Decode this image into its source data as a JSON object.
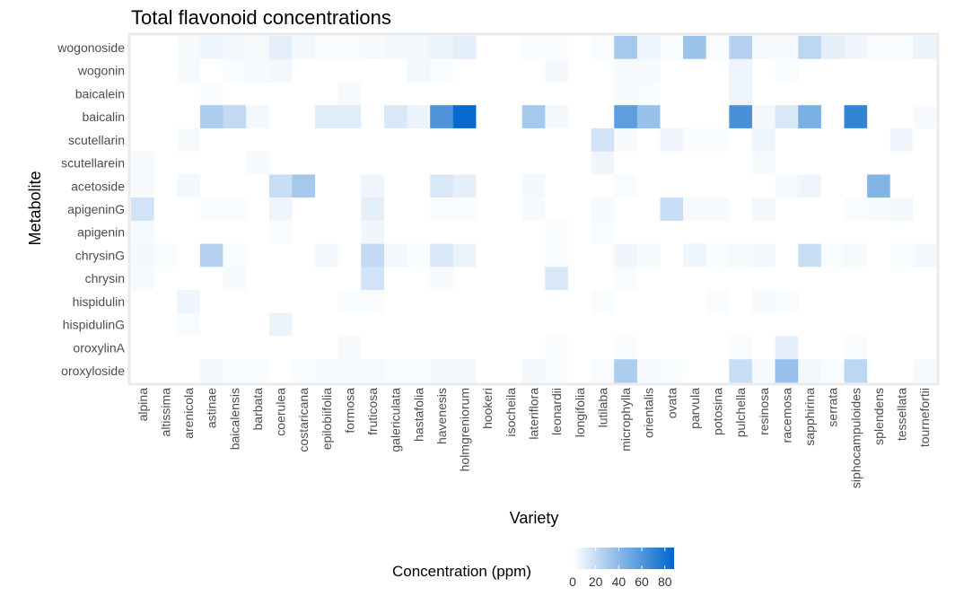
{
  "chart_data": {
    "type": "heatmap",
    "title": "Total flavonoid concentrations",
    "xlabel": "Variety",
    "ylabel": "Metabolite",
    "x": [
      "alpina",
      "altissima",
      "arenicola",
      "astinae",
      "baicalensis",
      "barbata",
      "coerulea",
      "costaricana",
      "epilobiifolia",
      "formosa",
      "fruticosa",
      "galericulata",
      "hastafolia",
      "havenesis",
      "holmgreniorum",
      "hookeri",
      "isocheila",
      "lateriflora",
      "leonardii",
      "longifolia",
      "lutilaba",
      "microphylla",
      "orientalis",
      "ovata",
      "parvula",
      "potosina",
      "pulchella",
      "resinosa",
      "racemosa",
      "sapphirina",
      "serrata",
      "siphocampuloides",
      "splendens",
      "tessellata",
      "tournefortii"
    ],
    "y": [
      "wogonoside",
      "wogonin",
      "baicalein",
      "baicalin",
      "scutellarin",
      "scutellarein",
      "acetoside",
      "apigeninG",
      "apigenin",
      "chrysinG",
      "chrysin",
      "hispidulin",
      "hispidulinG",
      "oroxylinA",
      "oroxyloside"
    ],
    "values": [
      [
        0,
        0,
        2,
        5,
        3,
        2,
        8,
        3,
        1,
        1,
        2,
        3,
        3,
        6,
        9,
        0,
        0,
        1,
        1,
        0,
        1,
        30,
        5,
        1,
        33,
        1,
        25,
        2,
        2,
        22,
        8,
        4,
        1,
        1,
        6
      ],
      [
        0,
        0,
        2,
        0,
        1,
        2,
        3,
        0,
        0,
        0,
        0,
        0,
        3,
        1,
        0,
        0,
        0,
        0,
        3,
        0,
        0,
        2,
        2,
        0,
        0,
        0,
        5,
        0,
        1,
        0,
        0,
        0,
        0,
        0,
        0
      ],
      [
        0,
        0,
        0,
        1,
        0,
        0,
        0,
        0,
        0,
        2,
        0,
        0,
        0,
        0,
        0,
        0,
        0,
        0,
        0,
        0,
        0,
        2,
        1,
        0,
        0,
        0,
        5,
        0,
        0,
        0,
        0,
        0,
        0,
        0,
        0
      ],
      [
        0,
        0,
        0,
        28,
        20,
        3,
        0,
        0,
        10,
        10,
        0,
        12,
        6,
        60,
        85,
        0,
        0,
        30,
        3,
        0,
        0,
        55,
        35,
        0,
        0,
        0,
        62,
        3,
        12,
        45,
        0,
        70,
        0,
        0,
        2
      ],
      [
        0,
        0,
        2,
        0,
        0,
        0,
        0,
        0,
        0,
        0,
        0,
        0,
        0,
        0,
        0,
        0,
        0,
        0,
        0,
        0,
        15,
        2,
        0,
        4,
        1,
        1,
        0,
        5,
        0,
        0,
        0,
        0,
        0,
        4,
        0
      ],
      [
        2,
        0,
        0,
        0,
        0,
        2,
        0,
        0,
        0,
        0,
        0,
        0,
        0,
        0,
        0,
        0,
        0,
        0,
        0,
        0,
        4,
        0,
        0,
        0,
        0,
        0,
        0,
        2,
        0,
        0,
        0,
        0,
        0,
        0,
        0
      ],
      [
        2,
        0,
        3,
        0,
        0,
        0,
        18,
        30,
        0,
        0,
        5,
        0,
        0,
        12,
        8,
        0,
        0,
        3,
        0,
        0,
        0,
        1,
        0,
        0,
        0,
        0,
        0,
        0,
        2,
        5,
        0,
        0,
        42,
        0,
        0
      ],
      [
        15,
        0,
        0,
        1,
        1,
        0,
        5,
        0,
        0,
        0,
        8,
        0,
        0,
        1,
        1,
        0,
        0,
        2,
        0,
        0,
        2,
        0,
        0,
        18,
        2,
        2,
        0,
        3,
        0,
        0,
        0,
        1,
        2,
        3,
        0
      ],
      [
        2,
        0,
        0,
        0,
        0,
        0,
        1,
        0,
        0,
        0,
        4,
        0,
        0,
        0,
        0,
        0,
        0,
        0,
        1,
        0,
        1,
        0,
        0,
        0,
        0,
        0,
        0,
        0,
        0,
        0,
        0,
        0,
        0,
        0,
        0
      ],
      [
        3,
        1,
        0,
        25,
        1,
        0,
        0,
        0,
        3,
        0,
        20,
        3,
        1,
        12,
        6,
        0,
        0,
        0,
        1,
        0,
        0,
        4,
        2,
        0,
        5,
        1,
        2,
        3,
        0,
        18,
        1,
        2,
        0,
        1,
        3
      ],
      [
        2,
        0,
        0,
        0,
        2,
        0,
        0,
        0,
        0,
        0,
        15,
        0,
        0,
        2,
        0,
        0,
        0,
        0,
        12,
        0,
        0,
        1,
        0,
        0,
        0,
        0,
        0,
        0,
        0,
        0,
        0,
        0,
        0,
        0,
        0
      ],
      [
        0,
        0,
        5,
        0,
        0,
        0,
        0,
        0,
        0,
        1,
        1,
        0,
        0,
        0,
        0,
        0,
        0,
        0,
        0,
        0,
        1,
        0,
        0,
        0,
        0,
        1,
        0,
        2,
        1,
        0,
        0,
        0,
        0,
        0,
        0
      ],
      [
        0,
        0,
        1,
        0,
        0,
        0,
        6,
        0,
        0,
        0,
        0,
        0,
        0,
        0,
        0,
        0,
        0,
        0,
        0,
        0,
        0,
        0,
        0,
        0,
        0,
        0,
        0,
        0,
        0,
        0,
        0,
        0,
        0,
        0,
        0
      ],
      [
        0,
        0,
        0,
        0,
        0,
        0,
        0,
        0,
        0,
        2,
        0,
        0,
        0,
        0,
        0,
        0,
        0,
        0,
        1,
        0,
        0,
        1,
        0,
        0,
        0,
        0,
        1,
        0,
        8,
        0,
        0,
        1,
        0,
        0,
        0
      ],
      [
        0,
        0,
        0,
        3,
        1,
        1,
        0,
        1,
        2,
        2,
        2,
        1,
        1,
        3,
        3,
        0,
        0,
        3,
        1,
        0,
        1,
        28,
        2,
        1,
        0,
        0,
        18,
        2,
        35,
        3,
        1,
        22,
        0,
        0,
        2
      ]
    ],
    "legend": {
      "title": "Concentration (ppm)",
      "ticks": [
        0,
        20,
        40,
        60,
        80
      ],
      "range": [
        0,
        88
      ],
      "low_color": "#ffffff",
      "high_color": "#0066cc",
      "placement": "bottom"
    },
    "grid": false
  }
}
